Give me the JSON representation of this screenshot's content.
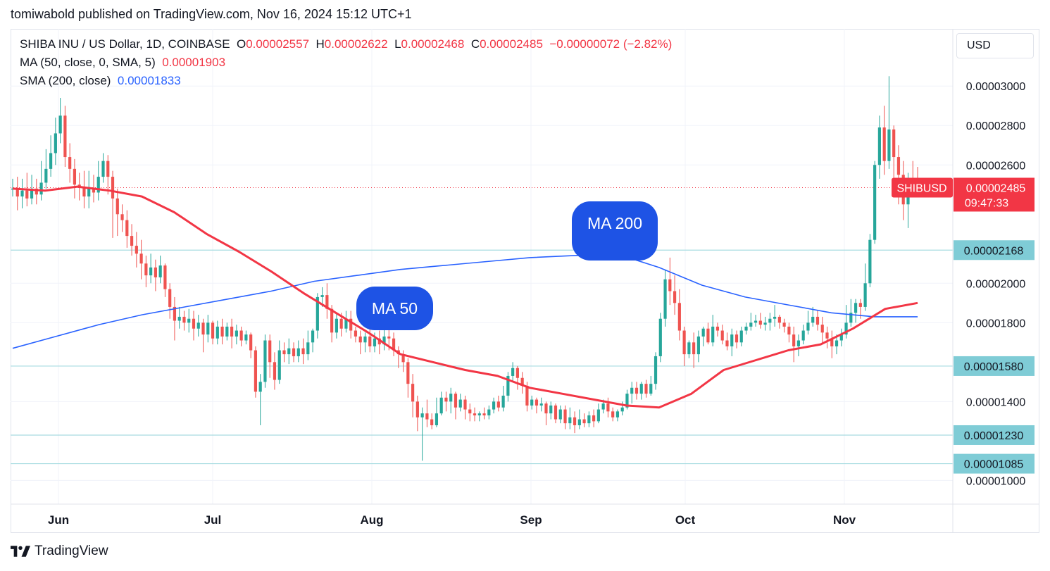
{
  "header": {
    "publish_line": "tomiwabold published on TradingView.com, Nov 16, 2024 15:12 UTC+1"
  },
  "legend": {
    "symbol": "SHIBA INU / US Dollar, 1D, COINBASE",
    "o_label": "O",
    "o_value": "0.00002557",
    "h_label": "H",
    "h_value": "0.00002622",
    "l_label": "L",
    "l_value": "0.00002468",
    "c_label": "C",
    "c_value": "0.00002485",
    "change": "−0.00000072 (−2.82%)",
    "ma_label": "MA (50, close, 0, SMA, 5)",
    "ma_value": "0.00001903",
    "sma_label": "SMA (200, close)",
    "sma_value": "0.00001833"
  },
  "currency_button": "USD",
  "footer": {
    "brand": "TradingView"
  },
  "colors": {
    "up": "#26a69a",
    "down": "#ef5350",
    "ma50": "#f23645",
    "sma200": "#2962ff",
    "level": "#a6dbe0",
    "level_tag": "#7fccd6",
    "price_tag": "#f23645",
    "bubble": "#1e53e5"
  },
  "chart_data": {
    "type": "candlestick",
    "x_labels": [
      "Jun",
      "Jul",
      "Aug",
      "Sep",
      "Oct",
      "Nov"
    ],
    "y_ticks": [
      "0.00003000",
      "0.00002800",
      "0.00002600",
      "0.00002000",
      "0.00001800",
      "0.00001400",
      "0.00001000"
    ],
    "ylim": [
      8.8e-06,
      3.29e-05
    ],
    "current_price": {
      "symbol": "SHIBUSD",
      "value": "0.00002485",
      "countdown": "09:47:33",
      "price": 2.485e-05
    },
    "levels": [
      {
        "value": "0.00002168",
        "price": 2.168e-05
      },
      {
        "value": "0.00001580",
        "price": 1.58e-05
      },
      {
        "value": "0.00001230",
        "price": 1.23e-05
      },
      {
        "value": "0.00001085",
        "price": 1.085e-05
      }
    ],
    "annotations": [
      {
        "text": "MA 200"
      },
      {
        "text": "MA 50"
      }
    ],
    "series": [
      {
        "name": "MA (50, close, 0, SMA, 5)",
        "values": [
          2.48e-05,
          2.47e-05,
          2.49e-05,
          2.47e-05,
          2.44e-05,
          2.36e-05,
          2.25e-05,
          2.16e-05,
          2.06e-05,
          1.95e-05,
          1.85e-05,
          1.75e-05,
          1.64e-05,
          1.6e-05,
          1.56e-05,
          1.53e-05,
          1.47e-05,
          1.44e-05,
          1.41e-05,
          1.38e-05,
          1.37e-05,
          1.44e-05,
          1.56e-05,
          1.61e-05,
          1.66e-05,
          1.69e-05,
          1.77e-05,
          1.87e-05,
          1.9e-05
        ]
      },
      {
        "name": "SMA (200, close)",
        "values": [
          1.67e-05,
          1.73e-05,
          1.79e-05,
          1.84e-05,
          1.88e-05,
          1.92e-05,
          1.96e-05,
          2.01e-05,
          2.04e-05,
          2.07e-05,
          2.09e-05,
          2.11e-05,
          2.13e-05,
          2.14e-05,
          2.15e-05,
          2.08e-05,
          1.99e-05,
          1.93e-05,
          1.89e-05,
          1.85e-05,
          1.83e-05,
          1.83e-05
        ]
      }
    ],
    "candles": [
      [
        2.475e-05,
        2.48e-05,
        2.44e-05,
        2.53e-05
      ],
      [
        2.48e-05,
        2.44e-05,
        2.37e-05,
        2.54e-05
      ],
      [
        2.44e-05,
        2.47e-05,
        2.38e-05,
        2.53e-05
      ],
      [
        2.47e-05,
        2.43e-05,
        2.39e-05,
        2.56e-05
      ],
      [
        2.43e-05,
        2.48e-05,
        2.4e-05,
        2.55e-05
      ],
      [
        2.48e-05,
        2.45e-05,
        2.4e-05,
        2.53e-05
      ],
      [
        2.45e-05,
        2.51e-05,
        2.42e-05,
        2.62e-05
      ],
      [
        2.51e-05,
        2.58e-05,
        2.48e-05,
        2.68e-05
      ],
      [
        2.58e-05,
        2.66e-05,
        2.54e-05,
        2.75e-05
      ],
      [
        2.66e-05,
        2.76e-05,
        2.6e-05,
        2.84e-05
      ],
      [
        2.76e-05,
        2.85e-05,
        2.71e-05,
        2.94e-05
      ],
      [
        2.85e-05,
        2.64e-05,
        2.59e-05,
        2.9e-05
      ],
      [
        2.64e-05,
        2.58e-05,
        2.51e-05,
        2.71e-05
      ],
      [
        2.58e-05,
        2.5e-05,
        2.43e-05,
        2.63e-05
      ],
      [
        2.5e-05,
        2.49e-05,
        2.42e-05,
        2.56e-05
      ],
      [
        2.49e-05,
        2.44e-05,
        2.38e-05,
        2.57e-05
      ],
      [
        2.44e-05,
        2.48e-05,
        2.38e-05,
        2.57e-05
      ],
      [
        2.48e-05,
        2.46e-05,
        2.41e-05,
        2.55e-05
      ],
      [
        2.46e-05,
        2.54e-05,
        2.42e-05,
        2.62e-05
      ],
      [
        2.54e-05,
        2.62e-05,
        2.51e-05,
        2.66e-05
      ],
      [
        2.62e-05,
        2.54e-05,
        2.45e-05,
        2.65e-05
      ],
      [
        2.54e-05,
        2.43e-05,
        2.23e-05,
        2.57e-05
      ],
      [
        2.43e-05,
        2.35e-05,
        2.24e-05,
        2.48e-05
      ],
      [
        2.35e-05,
        2.32e-05,
        2.26e-05,
        2.4e-05
      ],
      [
        2.32e-05,
        2.24e-05,
        2.18e-05,
        2.37e-05
      ],
      [
        2.24e-05,
        2.19e-05,
        2.14e-05,
        2.3e-05
      ],
      [
        2.19e-05,
        2.15e-05,
        2.08e-05,
        2.26e-05
      ],
      [
        2.15e-05,
        2.1e-05,
        2.02e-05,
        2.22e-05
      ],
      [
        2.1e-05,
        2.04e-05,
        1.98e-05,
        2.14e-05
      ],
      [
        2.04e-05,
        2.08e-05,
        2e-05,
        2.15e-05
      ],
      [
        2.08e-05,
        2.03e-05,
        1.96e-05,
        2.12e-05
      ],
      [
        2.03e-05,
        2.09e-05,
        2e-05,
        2.14e-05
      ],
      [
        2.09e-05,
        1.97e-05,
        1.93e-05,
        2.1e-05
      ],
      [
        1.97e-05,
        1.88e-05,
        1.82e-05,
        2e-05
      ],
      [
        1.88e-05,
        1.81e-05,
        1.71e-05,
        1.93e-05
      ],
      [
        1.81e-05,
        1.83e-05,
        1.77e-05,
        1.88e-05
      ],
      [
        1.83e-05,
        1.8e-05,
        1.76e-05,
        1.86e-05
      ],
      [
        1.8e-05,
        1.82e-05,
        1.75e-05,
        1.87e-05
      ],
      [
        1.82e-05,
        1.77e-05,
        1.71e-05,
        1.86e-05
      ],
      [
        1.77e-05,
        1.8e-05,
        1.73e-05,
        1.84e-05
      ],
      [
        1.8e-05,
        1.74e-05,
        1.65e-05,
        1.82e-05
      ],
      [
        1.74e-05,
        1.8e-05,
        1.7e-05,
        1.84e-05
      ],
      [
        1.8e-05,
        1.72e-05,
        1.69e-05,
        1.81e-05
      ],
      [
        1.72e-05,
        1.78e-05,
        1.69e-05,
        1.81e-05
      ],
      [
        1.78e-05,
        1.73e-05,
        1.69e-05,
        1.82e-05
      ],
      [
        1.73e-05,
        1.78e-05,
        1.71e-05,
        1.8e-05
      ],
      [
        1.78e-05,
        1.73e-05,
        1.67e-05,
        1.82e-05
      ],
      [
        1.73e-05,
        1.76e-05,
        1.69e-05,
        1.79e-05
      ],
      [
        1.76e-05,
        1.71e-05,
        1.68e-05,
        1.78e-05
      ],
      [
        1.71e-05,
        1.74e-05,
        1.69e-05,
        1.76e-05
      ],
      [
        1.74e-05,
        1.66e-05,
        1.62e-05,
        1.75e-05
      ],
      [
        1.66e-05,
        1.45e-05,
        1.42e-05,
        1.68e-05
      ],
      [
        1.45e-05,
        1.5e-05,
        1.28e-05,
        1.54e-05
      ],
      [
        1.5e-05,
        1.71e-05,
        1.47e-05,
        1.74e-05
      ],
      [
        1.71e-05,
        1.6e-05,
        1.52e-05,
        1.74e-05
      ],
      [
        1.6e-05,
        1.51e-05,
        1.46e-05,
        1.65e-05
      ],
      [
        1.51e-05,
        1.66e-05,
        1.49e-05,
        1.71e-05
      ],
      [
        1.66e-05,
        1.64e-05,
        1.6e-05,
        1.7e-05
      ],
      [
        1.64e-05,
        1.67e-05,
        1.59e-05,
        1.72e-05
      ],
      [
        1.67e-05,
        1.63e-05,
        1.6e-05,
        1.7e-05
      ],
      [
        1.63e-05,
        1.67e-05,
        1.6e-05,
        1.71e-05
      ],
      [
        1.67e-05,
        1.64e-05,
        1.59e-05,
        1.72e-05
      ],
      [
        1.64e-05,
        1.7e-05,
        1.61e-05,
        1.76e-05
      ],
      [
        1.7e-05,
        1.76e-05,
        1.65e-05,
        1.77e-05
      ],
      [
        1.76e-05,
        1.93e-05,
        1.72e-05,
        1.95e-05
      ],
      [
        1.93e-05,
        1.94e-05,
        1.88e-05,
        1.98e-05
      ],
      [
        1.94e-05,
        1.87e-05,
        1.82e-05,
        2e-05
      ],
      [
        1.87e-05,
        1.75e-05,
        1.7e-05,
        1.89e-05
      ],
      [
        1.75e-05,
        1.82e-05,
        1.72e-05,
        1.85e-05
      ],
      [
        1.82e-05,
        1.77e-05,
        1.73e-05,
        1.85e-05
      ],
      [
        1.77e-05,
        1.82e-05,
        1.75e-05,
        1.86e-05
      ],
      [
        1.82e-05,
        1.76e-05,
        1.72e-05,
        1.86e-05
      ],
      [
        1.76e-05,
        1.73e-05,
        1.7e-05,
        1.78e-05
      ],
      [
        1.73e-05,
        1.7e-05,
        1.64e-05,
        1.76e-05
      ],
      [
        1.7e-05,
        1.73e-05,
        1.65e-05,
        1.75e-05
      ],
      [
        1.73e-05,
        1.68e-05,
        1.65e-05,
        1.77e-05
      ],
      [
        1.68e-05,
        1.72e-05,
        1.65e-05,
        1.75e-05
      ],
      [
        1.72e-05,
        1.69e-05,
        1.64e-05,
        1.76e-05
      ],
      [
        1.69e-05,
        1.73e-05,
        1.66e-05,
        1.77e-05
      ],
      [
        1.73e-05,
        1.72e-05,
        1.66e-05,
        1.79e-05
      ],
      [
        1.72e-05,
        1.66e-05,
        1.63e-05,
        1.75e-05
      ],
      [
        1.66e-05,
        1.64e-05,
        1.57e-05,
        1.68e-05
      ],
      [
        1.64e-05,
        1.6e-05,
        1.55e-05,
        1.66e-05
      ],
      [
        1.6e-05,
        1.49e-05,
        1.42e-05,
        1.62e-05
      ],
      [
        1.49e-05,
        1.4e-05,
        1.32e-05,
        1.54e-05
      ],
      [
        1.4e-05,
        1.32e-05,
        1.25e-05,
        1.43e-05
      ],
      [
        1.32e-05,
        1.34e-05,
        1.1e-05,
        1.37e-05
      ],
      [
        1.34e-05,
        1.31e-05,
        1.27e-05,
        1.41e-05
      ],
      [
        1.31e-05,
        1.28e-05,
        1.26e-05,
        1.34e-05
      ],
      [
        1.28e-05,
        1.34e-05,
        1.27e-05,
        1.42e-05
      ],
      [
        1.34e-05,
        1.42e-05,
        1.33e-05,
        1.45e-05
      ],
      [
        1.42e-05,
        1.4e-05,
        1.35e-05,
        1.45e-05
      ],
      [
        1.4e-05,
        1.44e-05,
        1.34e-05,
        1.47e-05
      ],
      [
        1.44e-05,
        1.37e-05,
        1.31e-05,
        1.45e-05
      ],
      [
        1.37e-05,
        1.41e-05,
        1.35e-05,
        1.44e-05
      ],
      [
        1.41e-05,
        1.36e-05,
        1.31e-05,
        1.43e-05
      ],
      [
        1.36e-05,
        1.34e-05,
        1.3e-05,
        1.39e-05
      ],
      [
        1.34e-05,
        1.33e-05,
        1.3e-05,
        1.37e-05
      ],
      [
        1.33e-05,
        1.34e-05,
        1.3e-05,
        1.35e-05
      ],
      [
        1.34e-05,
        1.33e-05,
        1.31e-05,
        1.37e-05
      ],
      [
        1.33e-05,
        1.36e-05,
        1.31e-05,
        1.38e-05
      ],
      [
        1.36e-05,
        1.4e-05,
        1.34e-05,
        1.42e-05
      ],
      [
        1.4e-05,
        1.37e-05,
        1.35e-05,
        1.43e-05
      ],
      [
        1.37e-05,
        1.43e-05,
        1.35e-05,
        1.48e-05
      ],
      [
        1.43e-05,
        1.53e-05,
        1.4e-05,
        1.55e-05
      ],
      [
        1.53e-05,
        1.57e-05,
        1.5e-05,
        1.6e-05
      ],
      [
        1.57e-05,
        1.52e-05,
        1.46e-05,
        1.58e-05
      ],
      [
        1.52e-05,
        1.48e-05,
        1.44e-05,
        1.55e-05
      ],
      [
        1.48e-05,
        1.38e-05,
        1.35e-05,
        1.5e-05
      ],
      [
        1.38e-05,
        1.41e-05,
        1.36e-05,
        1.43e-05
      ],
      [
        1.41e-05,
        1.38e-05,
        1.34e-05,
        1.42e-05
      ],
      [
        1.38e-05,
        1.39e-05,
        1.35e-05,
        1.42e-05
      ],
      [
        1.39e-05,
        1.34e-05,
        1.28e-05,
        1.4e-05
      ],
      [
        1.34e-05,
        1.38e-05,
        1.31e-05,
        1.4e-05
      ],
      [
        1.38e-05,
        1.31e-05,
        1.29e-05,
        1.39e-05
      ],
      [
        1.31e-05,
        1.36e-05,
        1.29e-05,
        1.38e-05
      ],
      [
        1.36e-05,
        1.29e-05,
        1.26e-05,
        1.38e-05
      ],
      [
        1.29e-05,
        1.32e-05,
        1.26e-05,
        1.37e-05
      ],
      [
        1.32e-05,
        1.28e-05,
        1.24e-05,
        1.35e-05
      ],
      [
        1.28e-05,
        1.31e-05,
        1.26e-05,
        1.36e-05
      ],
      [
        1.31e-05,
        1.29e-05,
        1.27e-05,
        1.34e-05
      ],
      [
        1.29e-05,
        1.33e-05,
        1.27e-05,
        1.35e-05
      ],
      [
        1.33e-05,
        1.3e-05,
        1.27e-05,
        1.36e-05
      ],
      [
        1.3e-05,
        1.36e-05,
        1.29e-05,
        1.39e-05
      ],
      [
        1.36e-05,
        1.39e-05,
        1.34e-05,
        1.41e-05
      ],
      [
        1.39e-05,
        1.35e-05,
        1.32e-05,
        1.42e-05
      ],
      [
        1.35e-05,
        1.32e-05,
        1.3e-05,
        1.37e-05
      ],
      [
        1.32e-05,
        1.35e-05,
        1.3e-05,
        1.36e-05
      ],
      [
        1.35e-05,
        1.37e-05,
        1.33e-05,
        1.4e-05
      ],
      [
        1.37e-05,
        1.44e-05,
        1.36e-05,
        1.46e-05
      ],
      [
        1.44e-05,
        1.47e-05,
        1.39e-05,
        1.5e-05
      ],
      [
        1.47e-05,
        1.44e-05,
        1.41e-05,
        1.5e-05
      ],
      [
        1.44e-05,
        1.49e-05,
        1.41e-05,
        1.5e-05
      ],
      [
        1.49e-05,
        1.44e-05,
        1.42e-05,
        1.51e-05
      ],
      [
        1.44e-05,
        1.49e-05,
        1.43e-05,
        1.53e-05
      ],
      [
        1.49e-05,
        1.63e-05,
        1.46e-05,
        1.65e-05
      ],
      [
        1.63e-05,
        1.82e-05,
        1.6e-05,
        1.85e-05
      ],
      [
        1.82e-05,
        2.02e-05,
        1.78e-05,
        2.07e-05
      ],
      [
        2.02e-05,
        1.96e-05,
        1.89e-05,
        2.13e-05
      ],
      [
        1.96e-05,
        1.9e-05,
        1.84e-05,
        2.04e-05
      ],
      [
        1.9e-05,
        1.76e-05,
        1.71e-05,
        1.97e-05
      ],
      [
        1.76e-05,
        1.64e-05,
        1.58e-05,
        1.78e-05
      ],
      [
        1.64e-05,
        1.7e-05,
        1.62e-05,
        1.71e-05
      ],
      [
        1.7e-05,
        1.64e-05,
        1.57e-05,
        1.75e-05
      ],
      [
        1.64e-05,
        1.73e-05,
        1.6e-05,
        1.76e-05
      ],
      [
        1.73e-05,
        1.77e-05,
        1.68e-05,
        1.78e-05
      ],
      [
        1.77e-05,
        1.7e-05,
        1.69e-05,
        1.8e-05
      ],
      [
        1.7e-05,
        1.78e-05,
        1.68e-05,
        1.84e-05
      ],
      [
        1.78e-05,
        1.76e-05,
        1.73e-05,
        1.8e-05
      ],
      [
        1.76e-05,
        1.71e-05,
        1.69e-05,
        1.79e-05
      ],
      [
        1.71e-05,
        1.68e-05,
        1.66e-05,
        1.75e-05
      ],
      [
        1.68e-05,
        1.74e-05,
        1.63e-05,
        1.77e-05
      ],
      [
        1.74e-05,
        1.7e-05,
        1.67e-05,
        1.76e-05
      ],
      [
        1.7e-05,
        1.76e-05,
        1.68e-05,
        1.78e-05
      ],
      [
        1.76e-05,
        1.78e-05,
        1.74e-05,
        1.8e-05
      ],
      [
        1.78e-05,
        1.8e-05,
        1.76e-05,
        1.85e-05
      ],
      [
        1.8e-05,
        1.81e-05,
        1.78e-05,
        1.84e-05
      ],
      [
        1.81e-05,
        1.79e-05,
        1.77e-05,
        1.85e-05
      ],
      [
        1.79e-05,
        1.8e-05,
        1.76e-05,
        1.83e-05
      ],
      [
        1.8e-05,
        1.82e-05,
        1.76e-05,
        1.85e-05
      ],
      [
        1.82e-05,
        1.83e-05,
        1.78e-05,
        1.89e-05
      ],
      [
        1.83e-05,
        1.8e-05,
        1.77e-05,
        1.84e-05
      ],
      [
        1.8e-05,
        1.78e-05,
        1.75e-05,
        1.82e-05
      ],
      [
        1.78e-05,
        1.74e-05,
        1.7e-05,
        1.8e-05
      ],
      [
        1.74e-05,
        1.68e-05,
        1.6e-05,
        1.78e-05
      ],
      [
        1.68e-05,
        1.71e-05,
        1.63e-05,
        1.74e-05
      ],
      [
        1.71e-05,
        1.76e-05,
        1.69e-05,
        1.79e-05
      ],
      [
        1.76e-05,
        1.8e-05,
        1.74e-05,
        1.86e-05
      ],
      [
        1.8e-05,
        1.83e-05,
        1.78e-05,
        1.88e-05
      ],
      [
        1.83e-05,
        1.79e-05,
        1.76e-05,
        1.86e-05
      ],
      [
        1.79e-05,
        1.75e-05,
        1.7e-05,
        1.83e-05
      ],
      [
        1.75e-05,
        1.72e-05,
        1.67e-05,
        1.78e-05
      ],
      [
        1.72e-05,
        1.68e-05,
        1.62e-05,
        1.76e-05
      ],
      [
        1.68e-05,
        1.71e-05,
        1.64e-05,
        1.74e-05
      ],
      [
        1.71e-05,
        1.74e-05,
        1.68e-05,
        1.77e-05
      ],
      [
        1.74e-05,
        1.8e-05,
        1.72e-05,
        1.89e-05
      ],
      [
        1.8e-05,
        1.85e-05,
        1.78e-05,
        1.92e-05
      ],
      [
        1.85e-05,
        1.9e-05,
        1.8e-05,
        1.92e-05
      ],
      [
        1.9e-05,
        1.88e-05,
        1.82e-05,
        1.92e-05
      ],
      [
        1.88e-05,
        2e-05,
        1.86e-05,
        2.1e-05
      ],
      [
        2e-05,
        2.22e-05,
        1.98e-05,
        2.25e-05
      ],
      [
        2.22e-05,
        2.6e-05,
        2.2e-05,
        2.62e-05
      ],
      [
        2.6e-05,
        2.79e-05,
        2.53e-05,
        2.85e-05
      ],
      [
        2.79e-05,
        2.62e-05,
        2.55e-05,
        2.9e-05
      ],
      [
        2.62e-05,
        2.78e-05,
        2.58e-05,
        3.05e-05
      ],
      [
        2.78e-05,
        2.64e-05,
        2.53e-05,
        2.8e-05
      ],
      [
        2.64e-05,
        2.55e-05,
        2.4e-05,
        2.7e-05
      ],
      [
        2.55e-05,
        2.4e-05,
        2.32e-05,
        2.62e-05
      ],
      [
        2.4e-05,
        2.52e-05,
        2.28e-05,
        2.56e-05
      ],
      [
        2.52e-05,
        2.5e-05,
        2.44e-05,
        2.62e-05
      ],
      [
        2.5e-05,
        2.49e-05,
        2.45e-05,
        2.59e-05
      ]
    ]
  }
}
